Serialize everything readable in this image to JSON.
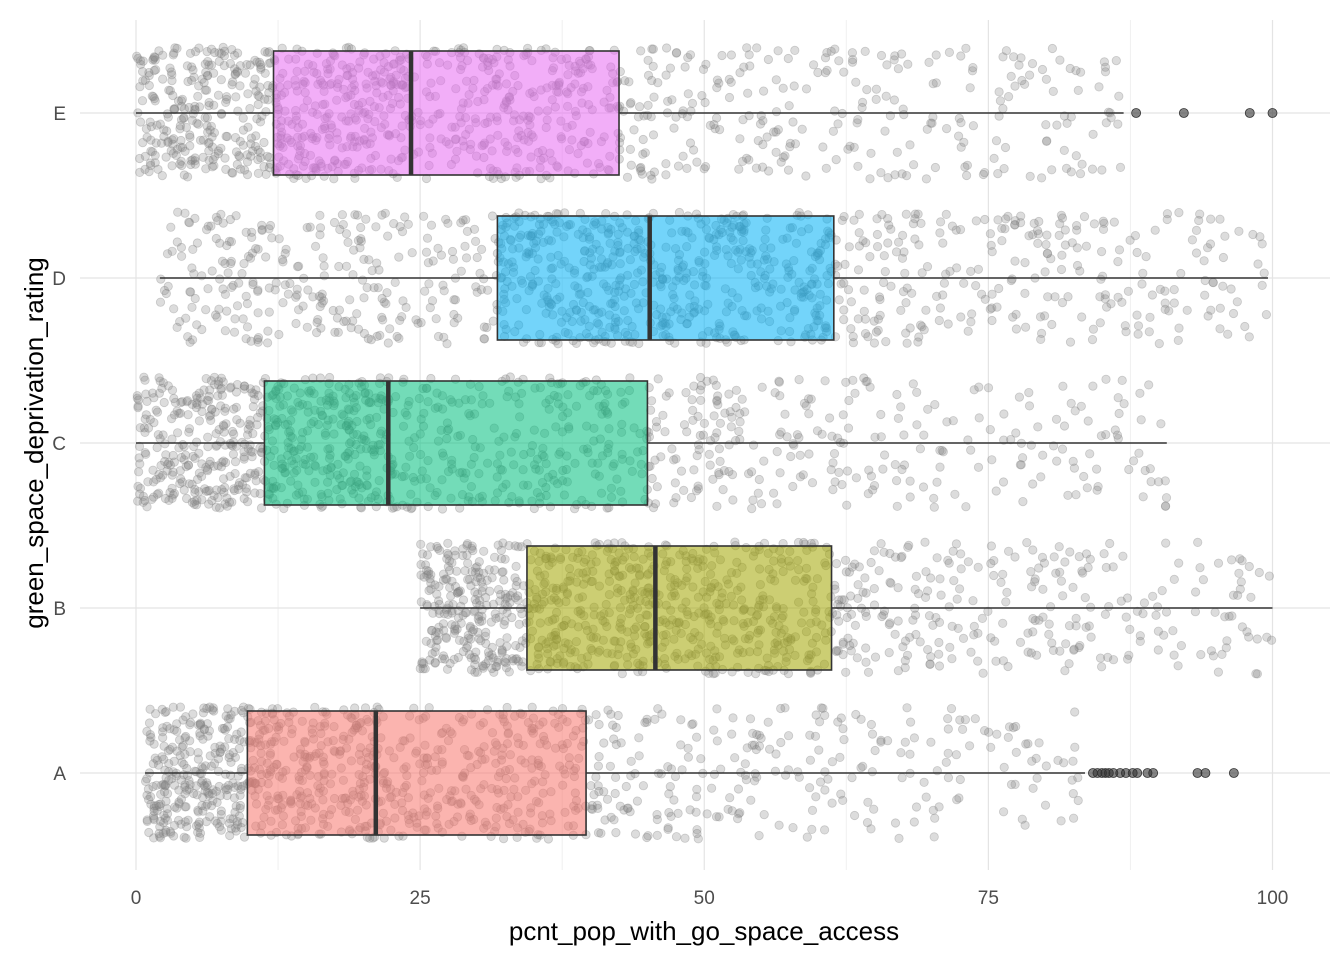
{
  "chart_data": {
    "type": "boxplot",
    "title": "",
    "xlabel": "pcnt_pop_with_go_space_access",
    "ylabel": "green_space_deprivation_rating",
    "xlim": [
      0,
      100
    ],
    "x_ticks": [
      0,
      25,
      50,
      75,
      100
    ],
    "x_tick_labels": [
      "0",
      "25",
      "50",
      "75",
      "100"
    ],
    "categories": [
      "A",
      "B",
      "C",
      "D",
      "E"
    ],
    "grid": true,
    "legend": "none",
    "jitter_points": true,
    "groups": [
      {
        "category": "A",
        "color": "#F8766D",
        "whisker_low": 0.8,
        "q1": 9.8,
        "median": 21.1,
        "q3": 39.6,
        "whisker_high": 83.5,
        "outliers": [
          84.2,
          84.6,
          85.0,
          85.3,
          85.6,
          86.0,
          86.6,
          87.1,
          87.7,
          88.1,
          89.0,
          89.5,
          93.4,
          94.1,
          96.6
        ]
      },
      {
        "category": "B",
        "color": "#A3A500",
        "whisker_low": 25.0,
        "q1": 34.4,
        "median": 45.7,
        "q3": 61.2,
        "whisker_high": 100.0,
        "outliers": []
      },
      {
        "category": "C",
        "color": "#00BF7D",
        "whisker_low": 0.0,
        "q1": 11.3,
        "median": 22.2,
        "q3": 45.0,
        "whisker_high": 90.7,
        "outliers": []
      },
      {
        "category": "D",
        "color": "#00B0F6",
        "whisker_low": 2.1,
        "q1": 31.8,
        "median": 45.2,
        "q3": 61.4,
        "whisker_high": 99.6,
        "outliers": []
      },
      {
        "category": "E",
        "color": "#E76BF3",
        "whisker_low": 0.0,
        "q1": 12.1,
        "median": 24.2,
        "q3": 42.5,
        "whisker_high": 86.9,
        "outliers": [
          88.0,
          92.2,
          98.0,
          100.0
        ]
      }
    ]
  }
}
